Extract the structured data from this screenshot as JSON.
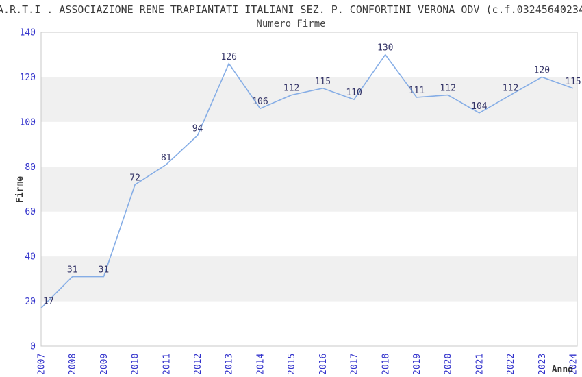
{
  "chart_data": {
    "type": "line",
    "title": "A.R.T.I . ASSOCIAZIONE RENE TRAPIANTATI ITALIANI SEZ. P. CONFORTINI VERONA ODV (c.f.03245640234",
    "subtitle": "Numero Firme",
    "xlabel": "Anno",
    "ylabel": "Firme",
    "categories": [
      "2007",
      "2008",
      "2009",
      "2010",
      "2011",
      "2012",
      "2013",
      "2014",
      "2015",
      "2016",
      "2017",
      "2018",
      "2019",
      "2020",
      "2021",
      "2022",
      "2023",
      "2024"
    ],
    "values": [
      17,
      31,
      31,
      72,
      81,
      94,
      126,
      106,
      112,
      115,
      110,
      130,
      111,
      112,
      104,
      112,
      120,
      115
    ],
    "ylim": [
      0,
      140
    ],
    "ytick_step": 20,
    "grid": "alternating-horizontal-bands",
    "legend": "none",
    "colors": {
      "band": "#f0f0f0",
      "border": "#c8c8c8",
      "line": "#85ade6",
      "tick": "#3333cc",
      "label": "#333366",
      "axis_title": "#333333"
    }
  }
}
